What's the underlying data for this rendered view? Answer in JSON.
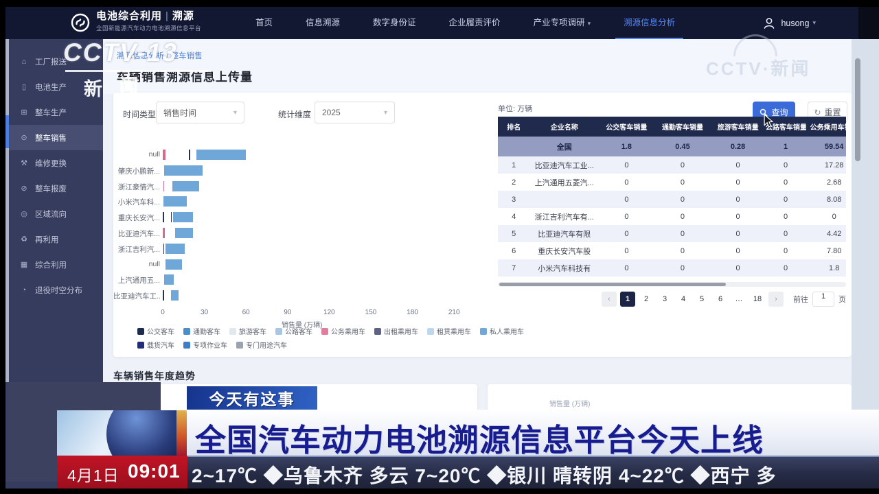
{
  "broadcast": {
    "channel_logo": {
      "main": "CCTV-13",
      "sub_solid": "新",
      "sub_outline": "闻"
    },
    "watermark": "CCTV·新闻",
    "badge": "今天有这事",
    "headline": "全国汽车动力电池溯源信息平台今天上线",
    "date": "4月1日",
    "time": "09:01",
    "ticker": "2~17℃  ◆乌鲁木齐 多云 7~20℃  ◆银川 晴转阴 4~22℃  ◆西宁 多"
  },
  "app": {
    "brand": {
      "title_left": "电池综合利用",
      "pipe": "|",
      "title_right": "溯源",
      "subtitle": "全国新能源汽车动力电池溯源信息平台"
    },
    "nav": [
      {
        "label": "首页",
        "active": false,
        "caret": false
      },
      {
        "label": "信息溯源",
        "active": false,
        "caret": false
      },
      {
        "label": "数字身份证",
        "active": false,
        "caret": false
      },
      {
        "label": "企业履责评价",
        "active": false,
        "caret": false
      },
      {
        "label": "产业专项调研",
        "active": false,
        "caret": true
      },
      {
        "label": "溯源信息分析",
        "active": true,
        "caret": false
      }
    ],
    "user": {
      "name": "husong"
    },
    "sidebar": [
      {
        "label": "工厂报送",
        "icon": "factory-icon",
        "active": false
      },
      {
        "label": "电池生产",
        "icon": "battery-icon",
        "active": false
      },
      {
        "label": "整车生产",
        "icon": "car-production-icon",
        "active": false
      },
      {
        "label": "整车销售",
        "icon": "car-sales-icon",
        "active": true
      },
      {
        "label": "维修更换",
        "icon": "wrench-icon",
        "active": false
      },
      {
        "label": "整车报废",
        "icon": "scrap-icon",
        "active": false
      },
      {
        "label": "区域流向",
        "icon": "region-icon",
        "active": false
      },
      {
        "label": "再利用",
        "icon": "recycle-icon",
        "active": false
      },
      {
        "label": "综合利用",
        "icon": "grid-icon",
        "active": false
      },
      {
        "label": "退役时空分布",
        "icon": "clock-icon",
        "active": false
      }
    ],
    "breadcrumb": {
      "parent": "溯源信息分析",
      "sep": "/",
      "current": "整车销售"
    },
    "page_title": "车辆销售溯源信息上传量",
    "filters": {
      "time_type_label": "时间类型",
      "time_type_value": "销售时间",
      "dim_label": "统计维度",
      "dim_value": "2025",
      "query_label": "查询",
      "reset_label": "重置"
    },
    "section2_title": "车辆销售年度趋势",
    "section2_axis_hint": "销售量 (万辆)"
  },
  "chart_data": {
    "type": "bar",
    "orientation": "horizontal",
    "title": "车辆销售溯源信息上传量",
    "xlabel": "销售量 (万辆)",
    "xlim": [
      0,
      210
    ],
    "x_ticks": [
      0,
      30,
      60,
      90,
      120,
      150,
      180,
      210
    ],
    "grid": false,
    "legend_position": "bottom",
    "palette": {
      "blue": "#6fa8d8",
      "pink": "#d9698c",
      "dark": "#2a3150"
    },
    "categories": [
      "null",
      "肇庆小鹏新...",
      "浙江豪情汽...",
      "小米汽车科...",
      "重庆长安汽...",
      "比亚迪汽车...",
      "浙江吉利汽...",
      "null",
      "上汽通用五...",
      "比亚迪汽车工..."
    ],
    "bars": [
      {
        "segments": [
          {
            "color_key": "pink",
            "start": 0,
            "len": 1.8
          },
          {
            "color_key": "dark",
            "start": 19,
            "len": 0.9
          },
          {
            "color_key": "blue",
            "start": 24.5,
            "len": 35.5
          }
        ]
      },
      {
        "segments": [
          {
            "color_key": "blue",
            "start": 1,
            "len": 27.5
          }
        ]
      },
      {
        "segments": [
          {
            "color_key": "pink",
            "start": 0.3,
            "len": 0.8
          },
          {
            "color_key": "blue",
            "start": 7,
            "len": 19
          }
        ]
      },
      {
        "segments": [
          {
            "color_key": "blue",
            "start": 0.5,
            "len": 17
          }
        ]
      },
      {
        "segments": [
          {
            "color_key": "dark",
            "start": 0,
            "len": 0.6
          },
          {
            "color_key": "dark",
            "start": 5.8,
            "len": 0.6
          },
          {
            "color_key": "blue",
            "start": 7.3,
            "len": 14.5
          }
        ]
      },
      {
        "segments": [
          {
            "color_key": "pink",
            "start": 0,
            "len": 1.6
          },
          {
            "color_key": "blue",
            "start": 9,
            "len": 13
          }
        ]
      },
      {
        "segments": [
          {
            "color_key": "dark",
            "start": 0.3,
            "len": 0.6
          },
          {
            "color_key": "blue",
            "start": 2,
            "len": 14
          }
        ]
      },
      {
        "segments": [
          {
            "color_key": "blue",
            "start": 2,
            "len": 12
          }
        ]
      },
      {
        "segments": [
          {
            "color_key": "blue",
            "start": 1,
            "len": 7
          }
        ]
      },
      {
        "segments": [
          {
            "color_key": "dark",
            "start": 0,
            "len": 1
          },
          {
            "color_key": "blue",
            "start": 6,
            "len": 5.5
          }
        ]
      }
    ],
    "legend_row1": [
      {
        "label": "公交客车",
        "color": "#1c2b4e"
      },
      {
        "label": "通勤客车",
        "color": "#4a8fc8"
      },
      {
        "label": "旅游客车",
        "color": "#e3e7ee"
      },
      {
        "label": "公路客车",
        "color": "#a9c7e2"
      },
      {
        "label": "公务乘用车",
        "color": "#df7f9d"
      },
      {
        "label": "出租乘用车",
        "color": "#5c6384"
      },
      {
        "label": "租赁乘用车",
        "color": "#bfd7ec"
      },
      {
        "label": "私人乘用车",
        "color": "#6fa8d8"
      }
    ],
    "legend_row2": [
      {
        "label": "载货汽车",
        "color": "#232c79"
      },
      {
        "label": "专项作业车",
        "color": "#3f7ec4"
      },
      {
        "label": "专门用途汽车",
        "color": "#9aa3ae"
      }
    ]
  },
  "sales_table": {
    "unit_label": "单位: 万辆",
    "headers": [
      "排名",
      "企业名称",
      "公交客车销量",
      "通勤客车销量",
      "旅游客车销量",
      "公路客车销量",
      "公务乘用车销量"
    ],
    "national_row": [
      "",
      "全国",
      "1.8",
      "0.45",
      "0.28",
      "1",
      "59.54"
    ],
    "rows": [
      [
        "1",
        "比亚迪汽车工业...",
        "0",
        "0",
        "0",
        "0",
        "17.28"
      ],
      [
        "2",
        "上汽通用五菱汽...",
        "0",
        "0",
        "0",
        "0",
        "2.68"
      ],
      [
        "3",
        "",
        "0",
        "0",
        "0",
        "0",
        "8.08"
      ],
      [
        "4",
        "浙江吉利汽车有...",
        "0",
        "0",
        "0",
        "0",
        "0"
      ],
      [
        "5",
        "比亚迪汽车有限",
        "0",
        "0",
        "0",
        "0",
        "4.42"
      ],
      [
        "6",
        "重庆长安汽车股",
        "0",
        "0",
        "0",
        "0",
        "7.80"
      ],
      [
        "7",
        "小米汽车科技有",
        "0",
        "0",
        "0",
        "0",
        "1.8"
      ]
    ]
  },
  "pagination": {
    "prev": "‹",
    "pages": [
      "1",
      "2",
      "3",
      "4",
      "5",
      "6",
      "…",
      "18"
    ],
    "active_page": "1",
    "next": "›",
    "jump_prefix": "前往",
    "jump_value": "1",
    "jump_suffix": "页"
  }
}
